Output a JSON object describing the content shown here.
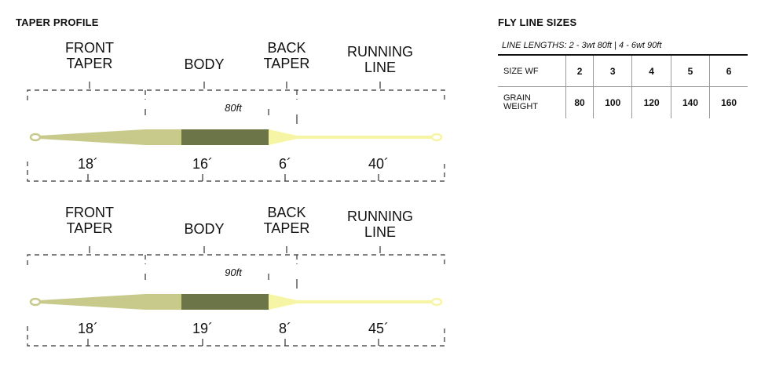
{
  "taper_profile": {
    "title": "TAPER PROFILE",
    "segment_labels": {
      "front_taper": [
        "FRONT",
        "TAPER"
      ],
      "body": [
        "BODY"
      ],
      "back_taper": [
        "BACK",
        "TAPER"
      ],
      "running_line": [
        "RUNNING",
        "LINE"
      ]
    },
    "profiles": [
      {
        "length_label": "80ft",
        "front_taper": "18´",
        "body": "16´",
        "back_taper": "6´",
        "running_line": "40´"
      },
      {
        "length_label": "90ft",
        "front_taper": "18´",
        "body": "19´",
        "back_taper": "8´",
        "running_line": "45´"
      }
    ],
    "colors": {
      "front_taper": "#c7ca8a",
      "body": "#6b7548",
      "running_line": "#f6f5a6",
      "lines": "#333333"
    }
  },
  "fly_line_sizes": {
    "title": "FLY LINE SIZES",
    "line_lengths": "LINE LENGTHS:  2 - 3wt 80ft   |   4 - 6wt 90ft",
    "rows": [
      {
        "label": "SIZE WF",
        "values": [
          "2",
          "3",
          "4",
          "5",
          "6"
        ]
      },
      {
        "label_lines": [
          "GRAIN",
          "WEIGHT"
        ],
        "values": [
          "80",
          "100",
          "120",
          "140",
          "160"
        ]
      }
    ]
  }
}
